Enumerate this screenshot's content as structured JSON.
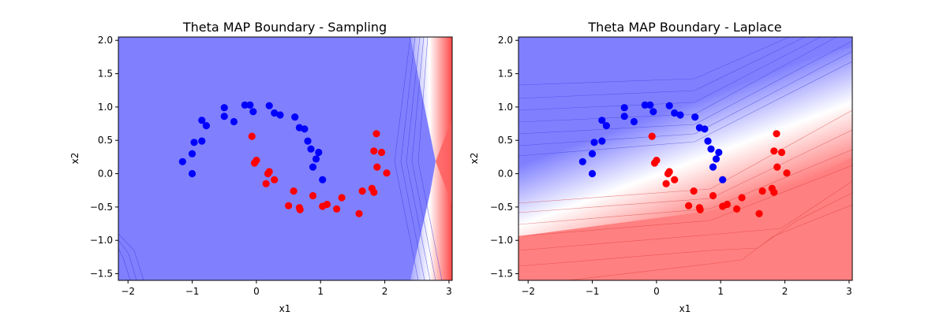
{
  "chart_data": [
    {
      "type": "scatter",
      "title": "Theta MAP Boundary - Sampling",
      "xlabel": "x1",
      "ylabel": "x2",
      "xlim": [
        -2.15,
        3.05
      ],
      "ylim": [
        -1.6,
        2.05
      ],
      "xticks": [
        "−2",
        "−1",
        "0",
        "1",
        "2",
        "3"
      ],
      "yticks": [
        "−1.5",
        "−1.0",
        "−0.5",
        "0.0",
        "0.5",
        "1.0",
        "1.5",
        "2.0"
      ],
      "background": "contour-filled",
      "series": [
        {
          "color": "#0000ff",
          "points": [
            [
              -1.15,
              0.18
            ],
            [
              -1.0,
              0.3
            ],
            [
              -0.97,
              0.47
            ],
            [
              -0.85,
              0.49
            ],
            [
              -1.0,
              0.0
            ],
            [
              -0.85,
              0.8
            ],
            [
              -0.78,
              0.72
            ],
            [
              -0.5,
              0.99
            ],
            [
              -0.5,
              0.86
            ],
            [
              -0.35,
              0.78
            ],
            [
              -0.18,
              1.03
            ],
            [
              -0.1,
              1.03
            ],
            [
              -0.05,
              0.93
            ],
            [
              0.2,
              1.02
            ],
            [
              0.28,
              0.91
            ],
            [
              0.37,
              0.88
            ],
            [
              0.6,
              0.85
            ],
            [
              0.67,
              0.69
            ],
            [
              0.75,
              0.67
            ],
            [
              0.8,
              0.49
            ],
            [
              0.85,
              0.37
            ],
            [
              0.88,
              0.1
            ],
            [
              0.93,
              0.22
            ],
            [
              0.97,
              0.32
            ],
            [
              1.03,
              -0.09
            ]
          ]
        },
        {
          "color": "#ff0000",
          "points": [
            [
              -0.07,
              0.56
            ],
            [
              -0.03,
              0.16
            ],
            [
              0.0,
              0.2
            ],
            [
              0.15,
              -0.15
            ],
            [
              0.18,
              0.0
            ],
            [
              0.2,
              0.03
            ],
            [
              0.28,
              -0.09
            ],
            [
              0.5,
              -0.48
            ],
            [
              0.58,
              -0.26
            ],
            [
              0.67,
              -0.51
            ],
            [
              0.68,
              -0.54
            ],
            [
              0.88,
              -0.33
            ],
            [
              1.03,
              -0.49
            ],
            [
              1.1,
              -0.46
            ],
            [
              1.25,
              -0.53
            ],
            [
              1.33,
              -0.36
            ],
            [
              1.6,
              -0.6
            ],
            [
              1.65,
              -0.26
            ],
            [
              1.8,
              -0.22
            ],
            [
              1.83,
              -0.28
            ],
            [
              1.83,
              0.34
            ],
            [
              1.87,
              0.6
            ],
            [
              1.88,
              0.1
            ],
            [
              1.95,
              0.32
            ],
            [
              2.03,
              0.01
            ]
          ]
        }
      ]
    },
    {
      "type": "scatter",
      "title": "Theta MAP Boundary - Laplace",
      "xlabel": "x1",
      "ylabel": "x2",
      "xlim": [
        -2.15,
        3.05
      ],
      "ylim": [
        -1.6,
        2.05
      ],
      "xticks": [
        "−2",
        "−1",
        "0",
        "1",
        "2",
        "3"
      ],
      "yticks": [
        "−1.5",
        "−1.0",
        "−0.5",
        "0.0",
        "0.5",
        "1.0",
        "1.5",
        "2.0"
      ],
      "background": "contour-filled",
      "series": [
        {
          "color": "#0000ff",
          "points": [
            [
              -1.15,
              0.18
            ],
            [
              -1.0,
              0.3
            ],
            [
              -0.97,
              0.47
            ],
            [
              -0.85,
              0.49
            ],
            [
              -1.0,
              0.0
            ],
            [
              -0.85,
              0.8
            ],
            [
              -0.78,
              0.72
            ],
            [
              -0.5,
              0.99
            ],
            [
              -0.5,
              0.86
            ],
            [
              -0.35,
              0.78
            ],
            [
              -0.18,
              1.03
            ],
            [
              -0.1,
              1.03
            ],
            [
              -0.05,
              0.93
            ],
            [
              0.2,
              1.02
            ],
            [
              0.28,
              0.91
            ],
            [
              0.37,
              0.88
            ],
            [
              0.6,
              0.85
            ],
            [
              0.67,
              0.69
            ],
            [
              0.75,
              0.67
            ],
            [
              0.8,
              0.49
            ],
            [
              0.85,
              0.37
            ],
            [
              0.88,
              0.1
            ],
            [
              0.93,
              0.22
            ],
            [
              0.97,
              0.32
            ],
            [
              1.03,
              -0.09
            ]
          ]
        },
        {
          "color": "#ff0000",
          "points": [
            [
              -0.07,
              0.56
            ],
            [
              -0.03,
              0.16
            ],
            [
              0.0,
              0.2
            ],
            [
              0.15,
              -0.15
            ],
            [
              0.18,
              0.0
            ],
            [
              0.2,
              0.03
            ],
            [
              0.28,
              -0.09
            ],
            [
              0.5,
              -0.48
            ],
            [
              0.58,
              -0.26
            ],
            [
              0.67,
              -0.51
            ],
            [
              0.68,
              -0.54
            ],
            [
              0.88,
              -0.33
            ],
            [
              1.03,
              -0.49
            ],
            [
              1.1,
              -0.46
            ],
            [
              1.25,
              -0.53
            ],
            [
              1.33,
              -0.36
            ],
            [
              1.6,
              -0.6
            ],
            [
              1.65,
              -0.26
            ],
            [
              1.8,
              -0.22
            ],
            [
              1.83,
              -0.28
            ],
            [
              1.83,
              0.34
            ],
            [
              1.87,
              0.6
            ],
            [
              1.88,
              0.1
            ],
            [
              1.95,
              0.32
            ],
            [
              2.03,
              0.01
            ]
          ]
        }
      ]
    }
  ]
}
